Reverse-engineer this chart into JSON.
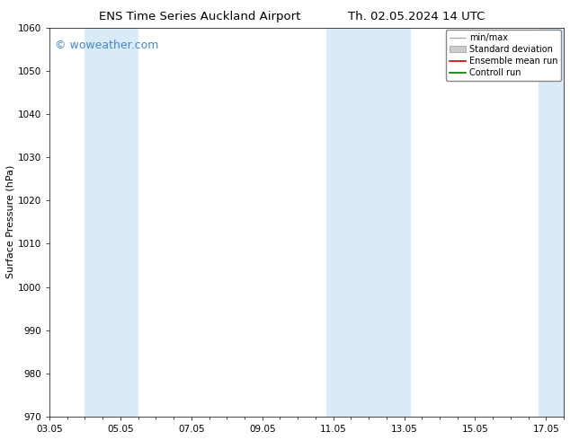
{
  "title_left": "ENS Time Series Auckland Airport",
  "title_right": "Th. 02.05.2024 14 UTC",
  "ylabel": "Surface Pressure (hPa)",
  "ylim": [
    970,
    1060
  ],
  "yticks": [
    970,
    980,
    990,
    1000,
    1010,
    1020,
    1030,
    1040,
    1050,
    1060
  ],
  "xlim": [
    0,
    14.5
  ],
  "xtick_labels": [
    "03.05",
    "05.05",
    "07.05",
    "09.05",
    "11.05",
    "13.05",
    "15.05",
    "17.05"
  ],
  "xtick_positions": [
    0,
    2,
    4,
    6,
    8,
    10,
    12,
    14
  ],
  "shaded_bands": [
    {
      "x_start": 1.0,
      "x_end": 2.5
    },
    {
      "x_start": 7.8,
      "x_end": 10.2
    },
    {
      "x_start": 13.8,
      "x_end": 14.5
    }
  ],
  "band_color": "#daeaf7",
  "watermark_text": "© woweather.com",
  "watermark_color": "#4488cc",
  "legend_entries": [
    {
      "label": "min/max"
    },
    {
      "label": "Standard deviation"
    },
    {
      "label": "Ensemble mean run"
    },
    {
      "label": "Controll run"
    }
  ],
  "minmax_color": "#aaaaaa",
  "std_color": "#cccccc",
  "ensemble_color": "#cc0000",
  "control_color": "#007700",
  "bg_color": "#ffffff",
  "plot_bg_color": "#ffffff",
  "title_fontsize": 9.5,
  "label_fontsize": 8,
  "tick_fontsize": 7.5,
  "legend_fontsize": 7,
  "watermark_fontsize": 9
}
